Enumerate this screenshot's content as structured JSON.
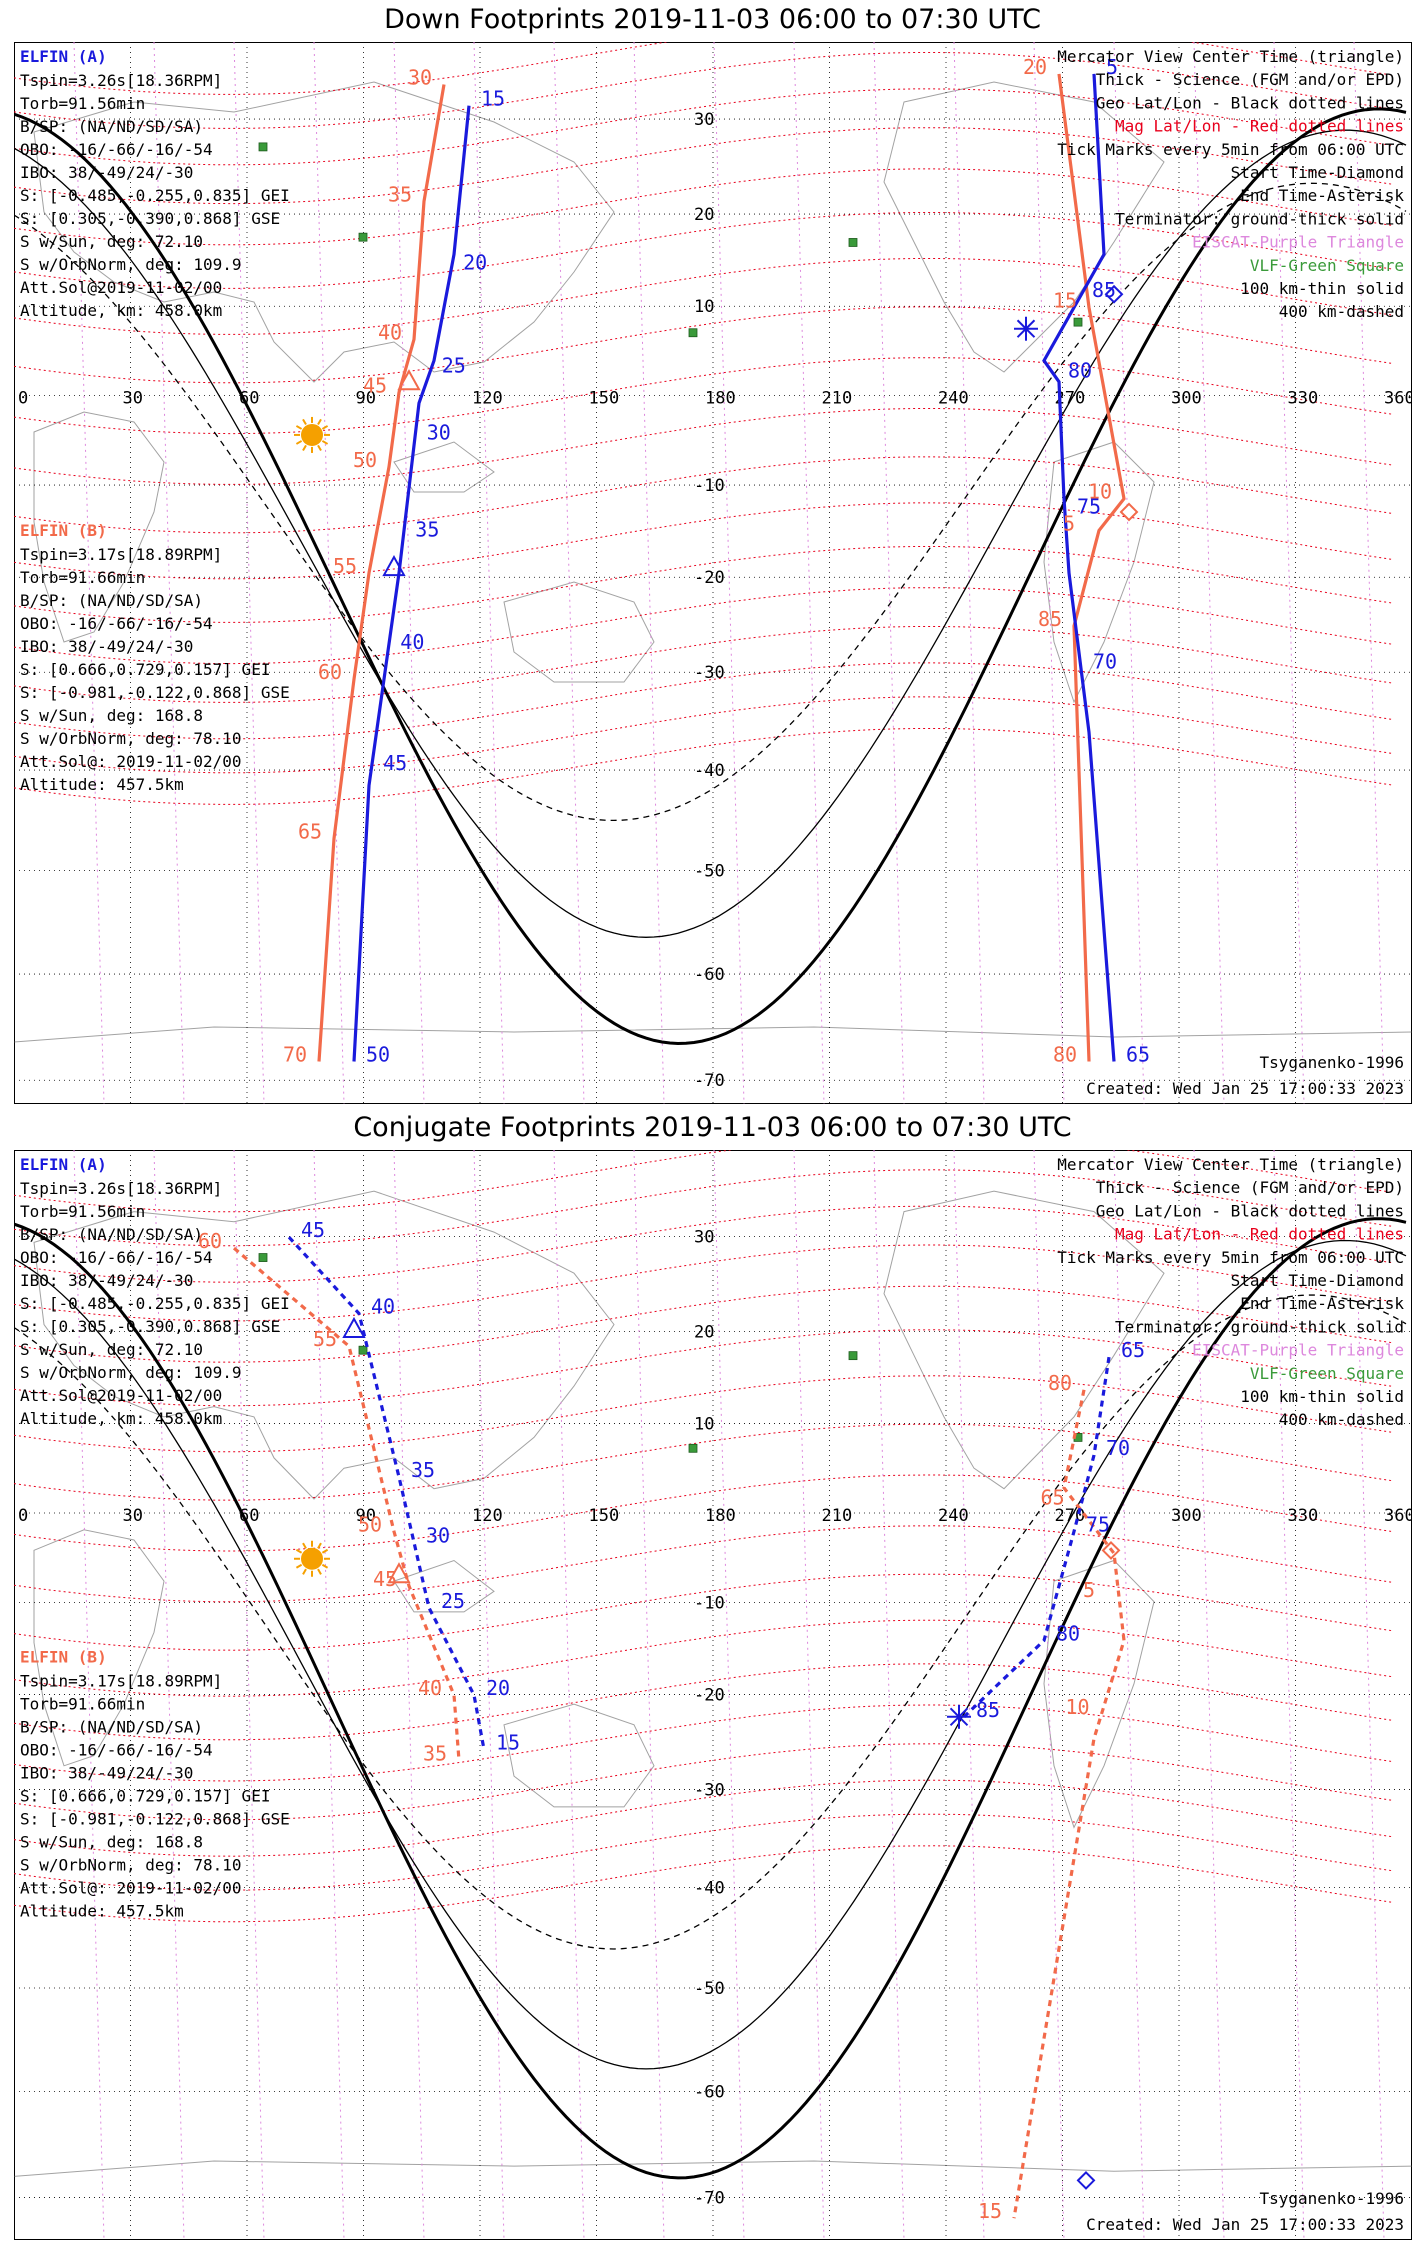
{
  "panels": [
    {
      "title": "Down Footprints 2019-11-03 06:00 to 07:30 UTC",
      "kind": "down",
      "elfin_a": {
        "name": "ELFIN (A)",
        "lines": [
          "Tspin=3.26s[18.36RPM]",
          "Torb=91.56min",
          "B/SP: (NA/ND/SD/SA)",
          "OBO: -16/-66/-16/-54",
          "IBO: 38/-49/24/-30",
          "S: [-0.485,-0.255,0.835] GEI",
          "S: [0.305,-0.390,0.868] GSE",
          "S w/Sun, deg: 72.10",
          "S w/OrbNorm, deg: 109.9",
          "Att.Sol@2019-11-02/00",
          "Altitude, km: 458.0km"
        ]
      },
      "elfin_b": {
        "name": "ELFIN (B)",
        "lines": [
          "Tspin=3.17s[18.89RPM]",
          "Torb=91.66min",
          "B/SP: (NA/ND/SD/SA)",
          "OBO: -16/-66/-16/-54",
          "IBO: 38/-49/24/-30",
          "S: [0.666,0.729,0.157] GEI",
          "S: [-0.981,-0.122,0.868] GSE",
          "S w/Sun, deg: 168.8",
          "S w/OrbNorm, deg: 78.10",
          "Att.Sol@: 2019-11-02/00",
          "Altitude: 457.5km"
        ]
      },
      "legend": [
        {
          "text": "Mercator View Center Time (triangle)",
          "color": "#000000"
        },
        {
          "text": "Thick - Science (FGM and/or EPD)",
          "color": "#000000"
        },
        {
          "text": "Geo Lat/Lon - Black dotted lines",
          "color": "#000000"
        },
        {
          "text": "Mag Lat/Lon - Red dotted lines",
          "color": "#e8001c"
        },
        {
          "text": "Tick Marks every 5min from 06:00 UTC",
          "color": "#000000"
        },
        {
          "text": "Start Time-Diamond",
          "color": "#000000"
        },
        {
          "text": "End Time-Asterisk",
          "color": "#000000"
        },
        {
          "text": "Terminator: ground-thick solid",
          "color": "#000000"
        },
        {
          "text": "EISCAT-Purple Triangle",
          "color": "#dd88dd"
        },
        {
          "text": "VLF-Green Square",
          "color": "#3a9a3a"
        },
        {
          "text": "100 km-thin solid",
          "color": "#000000"
        },
        {
          "text": "400 km-dashed",
          "color": "#000000"
        }
      ],
      "footer_left": "",
      "footer_right_1": "Tsyganenko-1996",
      "footer_right_2": "Created: Wed Jan 25 17:00:33 2023",
      "track_a_west_labels": [
        "15",
        "20",
        "25",
        "30",
        "35",
        "40",
        "45",
        "50"
      ],
      "track_b_west_labels": [
        "30",
        "35",
        "40",
        "45",
        "50",
        "55",
        "60",
        "65",
        "70"
      ],
      "track_a_east_labels": [
        "5",
        "85",
        "80",
        "75",
        "70",
        "65"
      ],
      "track_b_east_labels": [
        "20",
        "15",
        "10",
        "5",
        "85",
        "80"
      ]
    },
    {
      "title": "Conjugate Footprints 2019-11-03 06:00 to 07:30 UTC",
      "kind": "conj",
      "elfin_a": {
        "name": "ELFIN (A)",
        "lines": [
          "Tspin=3.26s[18.36RPM]",
          "Torb=91.56min",
          "B/SP: (NA/ND/SD/SA)",
          "OBO: -16/-66/-16/-54",
          "IBO: 38/-49/24/-30",
          "S: [-0.485,-0.255,0.835] GEI",
          "S: [0.305,-0.390,0.868] GSE",
          "S w/Sun, deg: 72.10",
          "S w/OrbNorm, deg: 109.9",
          "Att.Sol@2019-11-02/00",
          "Altitude, km: 458.0km"
        ]
      },
      "elfin_b": {
        "name": "ELFIN (B)",
        "lines": [
          "Tspin=3.17s[18.89RPM]",
          "Torb=91.66min",
          "B/SP: (NA/ND/SD/SA)",
          "OBO: -16/-66/-16/-54",
          "IBO: 38/-49/24/-30",
          "S: [0.666,0.729,0.157] GEI",
          "S: [-0.981,-0.122,0.868] GSE",
          "S w/Sun, deg: 168.8",
          "S w/OrbNorm, deg: 78.10",
          "Att.Sol@: 2019-11-02/00",
          "Altitude: 457.5km"
        ]
      },
      "legend": [
        {
          "text": "Mercator View Center Time (triangle)",
          "color": "#000000"
        },
        {
          "text": "Thick - Science (FGM and/or EPD)",
          "color": "#000000"
        },
        {
          "text": "Geo Lat/Lon - Black dotted lines",
          "color": "#000000"
        },
        {
          "text": "Mag Lat/Lon - Red dotted lines",
          "color": "#e8001c"
        },
        {
          "text": "Tick Marks every 5min from 06:00 UTC",
          "color": "#000000"
        },
        {
          "text": "Start Time-Diamond",
          "color": "#000000"
        },
        {
          "text": "End Time-Asterisk",
          "color": "#000000"
        },
        {
          "text": "Terminator: ground-thick solid",
          "color": "#000000"
        },
        {
          "text": "EISCAT-Purple Triangle",
          "color": "#dd88dd"
        },
        {
          "text": "VLF-Green Square",
          "color": "#3a9a3a"
        },
        {
          "text": "100 km-thin solid",
          "color": "#000000"
        },
        {
          "text": "400 km-dashed",
          "color": "#000000"
        }
      ],
      "footer_right_1": "Tsyganenko-1996",
      "footer_right_2": "Created: Wed Jan 25 17:00:33 2023",
      "track_a_west_labels": [
        "45",
        "40",
        "35",
        "30",
        "25",
        "20",
        "15"
      ],
      "track_b_west_labels": [
        "60",
        "55",
        "50",
        "45",
        "40",
        "35"
      ],
      "track_a_east_labels": [
        "65",
        "70",
        "75",
        "80",
        "85"
      ],
      "track_b_east_labels": [
        "80",
        "65",
        "5",
        "10",
        "15"
      ]
    }
  ],
  "axes": {
    "lon_labels": [
      "0",
      "30",
      "60",
      "90",
      "120",
      "150",
      "180",
      "210",
      "240",
      "270",
      "300",
      "330",
      "360"
    ],
    "lat_labels": [
      "70",
      "60",
      "50",
      "40",
      "30",
      "20",
      "10",
      "-10",
      "-20",
      "-30",
      "-40",
      "-50",
      "-60",
      "-70"
    ]
  },
  "colors": {
    "elfin_a": "#1a1adc",
    "elfin_b": "#f26a4a",
    "mag_grid": "#e8001c",
    "eiscat": "#dd88dd",
    "vlf": "#3a9a3a",
    "sun": "#f5a000"
  }
}
